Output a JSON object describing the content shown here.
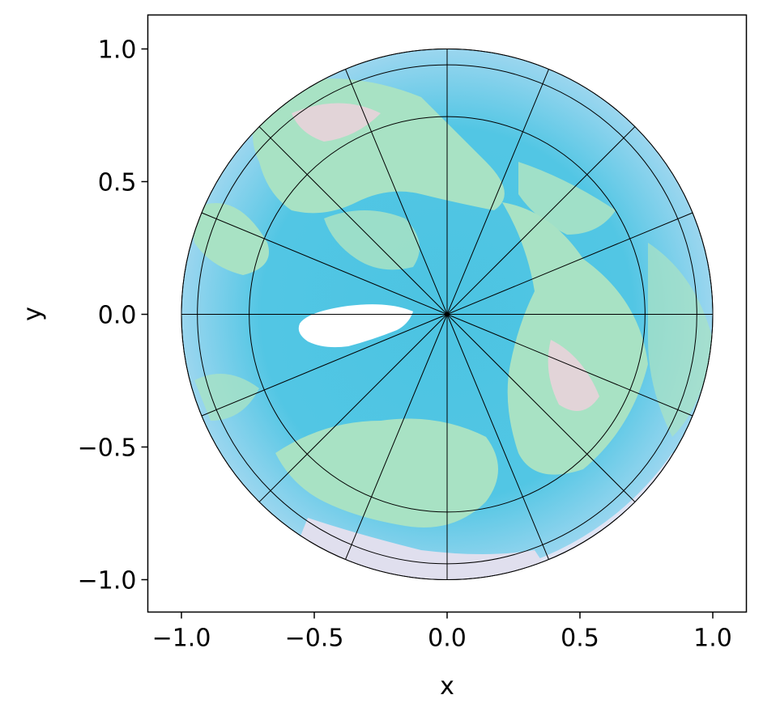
{
  "chart_data": {
    "type": "scatter",
    "title": "",
    "xlabel": "x",
    "ylabel": "y",
    "xlim": [
      -1.13,
      1.13
    ],
    "ylim": [
      -1.13,
      1.13
    ],
    "xticks": [
      -1.0,
      -0.5,
      0.0,
      0.5,
      1.0
    ],
    "yticks": [
      -1.0,
      -0.5,
      0.0,
      0.5,
      1.0
    ],
    "xtick_labels": [
      "−1.0",
      "−0.5",
      "0.0",
      "0.5",
      "1.0"
    ],
    "ytick_labels": [
      "−1.0",
      "−0.5",
      "0.0",
      "0.5",
      "1.0"
    ],
    "grid": false,
    "disk": {
      "center": [
        0,
        0
      ],
      "radius": 1.0
    },
    "graticule": {
      "circle_radii": [
        0.745,
        0.94,
        1.0
      ],
      "meridian_count": 16,
      "meridian_step_deg": 22.5
    },
    "colors": {
      "ocean": "#4cc4e2",
      "ocean_outer": "#8fd3ee",
      "land": "#a8e2c4",
      "land_dry": "#e2d4d8",
      "ice": "#ffffff",
      "grid_lines": "#000000"
    }
  }
}
